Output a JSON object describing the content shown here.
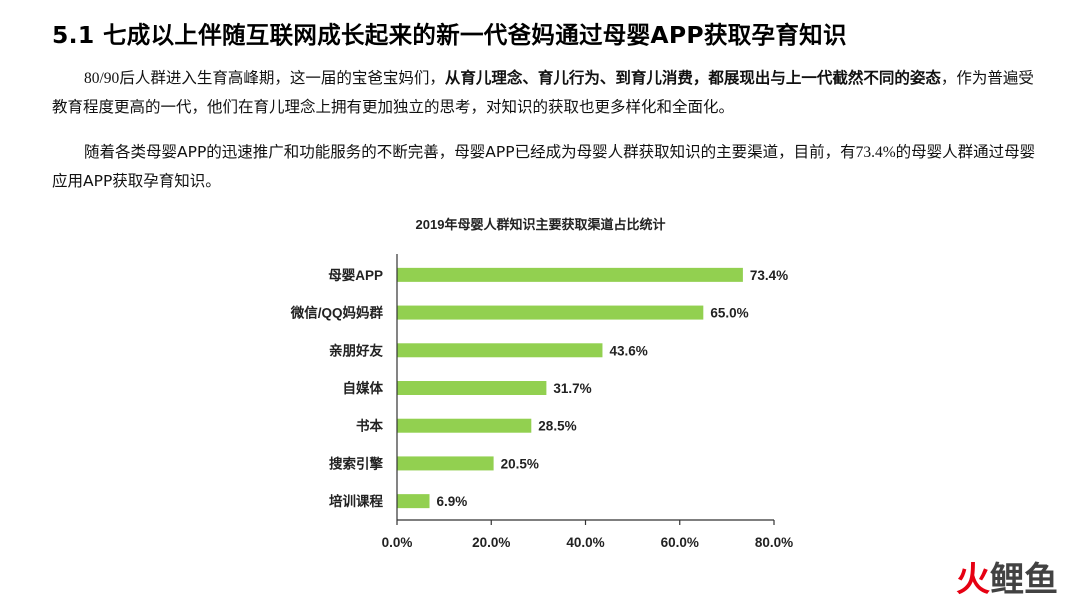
{
  "heading": "5.1 七成以上伴随互联网成长起来的新一代爸妈通过母婴APP获取孕育知识",
  "paragraph1": {
    "lead_number": "80/90",
    "lead_text": "后人群进入生育高峰期，这一届的宝爸宝妈们，",
    "bold_text": "从育儿理念、育儿行为、到育儿消费，都展现出与上一代截然不同的姿态",
    "tail_text": "，作为普遍受教育程度更高的一代，他们在育儿理念上拥有更加独立的思考，对知识的获取也更多样化和全面化。"
  },
  "paragraph2": {
    "text_before": "随着各类母婴APP的迅速推广和功能服务的不断完善，母婴APP已经成为母婴人群获取知识的主要渠道，目前，有",
    "number": "73.4%",
    "text_after": "的母婴人群通过母婴应用APP获取孕育知识。"
  },
  "chart_data": {
    "type": "bar",
    "orientation": "horizontal",
    "title": "2019年母婴人群知识主要获取渠道占比统计",
    "categories": [
      "母婴APP",
      "微信/QQ妈妈群",
      "亲朋好友",
      "自媒体",
      "书本",
      "搜索引擎",
      "培训课程"
    ],
    "values": [
      73.4,
      65.0,
      43.6,
      31.7,
      28.5,
      20.5,
      6.9
    ],
    "value_labels": [
      "73.4%",
      "65.0%",
      "43.6%",
      "31.7%",
      "28.5%",
      "20.5%",
      "6.9%"
    ],
    "xlim": [
      0,
      80
    ],
    "xticks": [
      0,
      20,
      40,
      60,
      80
    ],
    "xtick_labels": [
      "0.0%",
      "20.0%",
      "40.0%",
      "60.0%",
      "80.0%"
    ],
    "xlabel": "",
    "ylabel": "",
    "grid": false,
    "bar_color": "#92d050"
  },
  "watermark": {
    "part1": "火",
    "part2": "鲤鱼"
  }
}
